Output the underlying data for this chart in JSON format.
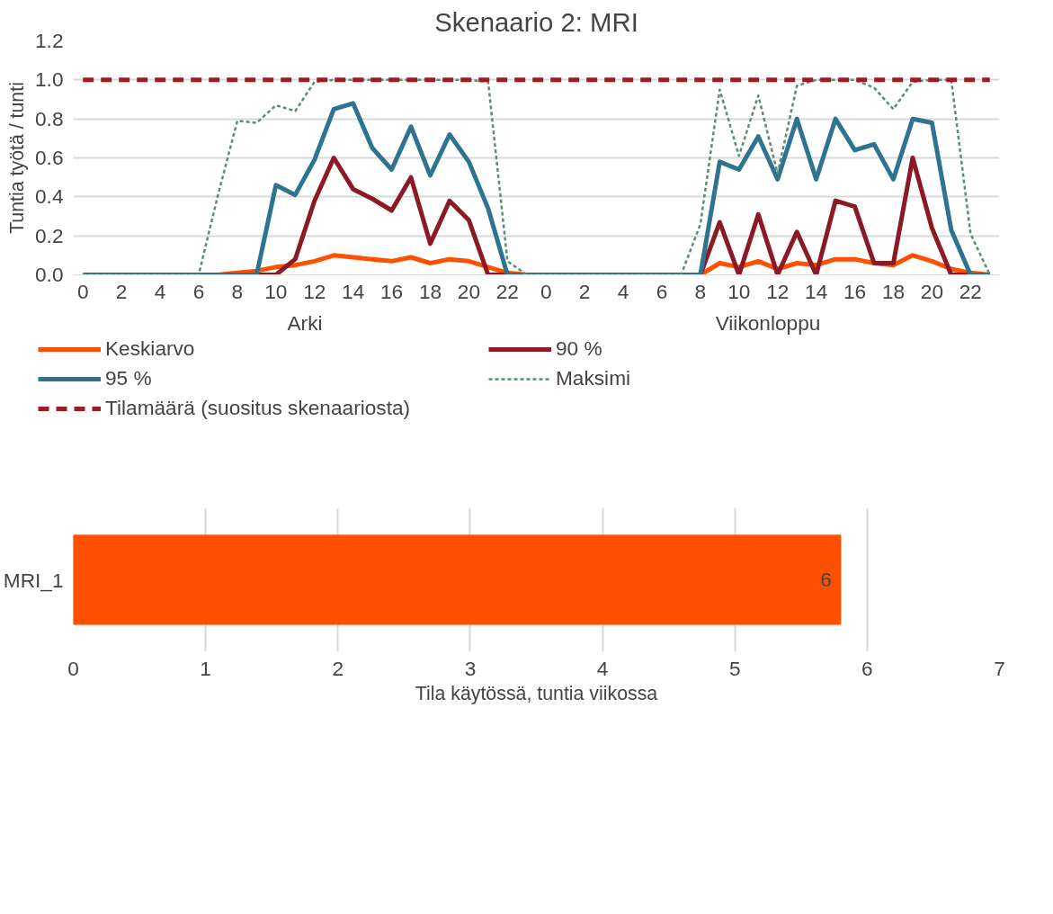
{
  "chart_data": [
    {
      "type": "line",
      "title": "Skenaario 2: MRI",
      "ylabel": "Tuntia työtä / tunti",
      "categories": [
        "0",
        null,
        "2",
        null,
        "4",
        null,
        "6",
        null,
        "8",
        null,
        "10",
        null,
        "12",
        null,
        "14",
        null,
        "16",
        null,
        "18",
        null,
        "20",
        null,
        "22",
        null,
        "0",
        null,
        "2",
        null,
        "4",
        null,
        "6",
        null,
        "8",
        null,
        "10",
        null,
        "12",
        null,
        "14",
        null,
        "16",
        null,
        "18",
        null,
        "20",
        null,
        "22",
        null
      ],
      "annotations": [
        "Arki",
        "Viikonloppu"
      ],
      "series": [
        {
          "name": "Keskiarvo",
          "color": "#ff5000",
          "line_style": "solid",
          "values": [
            null,
            null,
            null,
            null,
            null,
            null,
            0,
            0,
            0.01,
            0.02,
            0.04,
            0.05,
            0.07,
            0.1,
            0.09,
            0.08,
            0.07,
            0.09,
            0.06,
            0.08,
            0.07,
            0.04,
            0.01,
            0,
            0,
            0,
            0,
            0,
            0,
            0,
            0,
            0,
            0,
            0.06,
            0.04,
            0.07,
            0.03,
            0.06,
            0.05,
            0.08,
            0.08,
            0.06,
            0.05,
            0.1,
            0.07,
            0.03,
            0.01,
            0
          ]
        },
        {
          "name": "90 %",
          "color": "#8b1a24",
          "line_style": "solid",
          "values": [
            null,
            null,
            null,
            null,
            null,
            null,
            null,
            null,
            0,
            0,
            0,
            0.08,
            0.38,
            0.6,
            0.44,
            0.39,
            0.33,
            0.5,
            0.16,
            0.38,
            0.28,
            0,
            0,
            0,
            0,
            0,
            0,
            0,
            0,
            0,
            0,
            0,
            0,
            0.27,
            0,
            0.31,
            0,
            0.22,
            0,
            0.38,
            0.35,
            0.06,
            0.06,
            0.6,
            0.24,
            0,
            0,
            0
          ]
        },
        {
          "name": "95 %",
          "color": "#2e7390",
          "line_style": "solid",
          "values": [
            0,
            0,
            0,
            0,
            0,
            0,
            0,
            0,
            0,
            0,
            0.46,
            0.41,
            0.59,
            0.85,
            0.88,
            0.65,
            0.54,
            0.76,
            0.51,
            0.72,
            0.58,
            0.34,
            0,
            0,
            0,
            0,
            0,
            0,
            0,
            0,
            0,
            0,
            0,
            0.58,
            0.54,
            0.71,
            0.49,
            0.8,
            0.49,
            0.8,
            0.64,
            0.67,
            0.49,
            0.8,
            0.78,
            0.23,
            0,
            0
          ]
        },
        {
          "name": "Maksimi",
          "color": "#5a8f6e",
          "line_style": "dotted",
          "values": [
            0,
            0,
            0,
            0,
            0,
            0,
            0,
            0.41,
            0.79,
            0.78,
            0.87,
            0.84,
            0.99,
            1.0,
            1.0,
            1.0,
            1.0,
            1.0,
            1.0,
            1.0,
            1.0,
            0.99,
            0.07,
            0,
            0,
            0,
            0,
            0,
            0,
            0,
            0,
            0,
            0.26,
            0.95,
            0.61,
            0.92,
            0.52,
            0.97,
            1.0,
            1.0,
            1.0,
            0.96,
            0.85,
            0.99,
            1.0,
            1.0,
            0.21,
            0
          ]
        },
        {
          "name": "Tilamäärä (suositus skenaariosta)",
          "color": "#9b1c24",
          "line_style": "dashed",
          "values": [
            1,
            1,
            1,
            1,
            1,
            1,
            1,
            1,
            1,
            1,
            1,
            1,
            1,
            1,
            1,
            1,
            1,
            1,
            1,
            1,
            1,
            1,
            1,
            1,
            1,
            1,
            1,
            1,
            1,
            1,
            1,
            1,
            1,
            1,
            1,
            1,
            1,
            1,
            1,
            1,
            1,
            1,
            1,
            1,
            1,
            1,
            1,
            1
          ]
        }
      ],
      "ylim": [
        0,
        1.2
      ],
      "yticks": [
        {
          "value": 0,
          "label": "0.0"
        },
        0.2,
        0.4,
        0.6,
        0.8,
        {
          "value": 1,
          "label": "1.0"
        },
        1.2
      ],
      "grid": "y",
      "legend": "bottom",
      "marker": "none"
    },
    {
      "type": "bar",
      "orientation": "horizontal",
      "xlabel": "Tila käytössä, tuntia viikossa",
      "categories": [
        "MRI_1"
      ],
      "values": [
        5.8
      ],
      "value_labels": [
        "6"
      ],
      "color": "#ff5000",
      "xlim": [
        0,
        7
      ],
      "xticks": [
        0,
        1,
        2,
        3,
        4,
        5,
        6,
        7
      ],
      "grid": "x"
    }
  ]
}
